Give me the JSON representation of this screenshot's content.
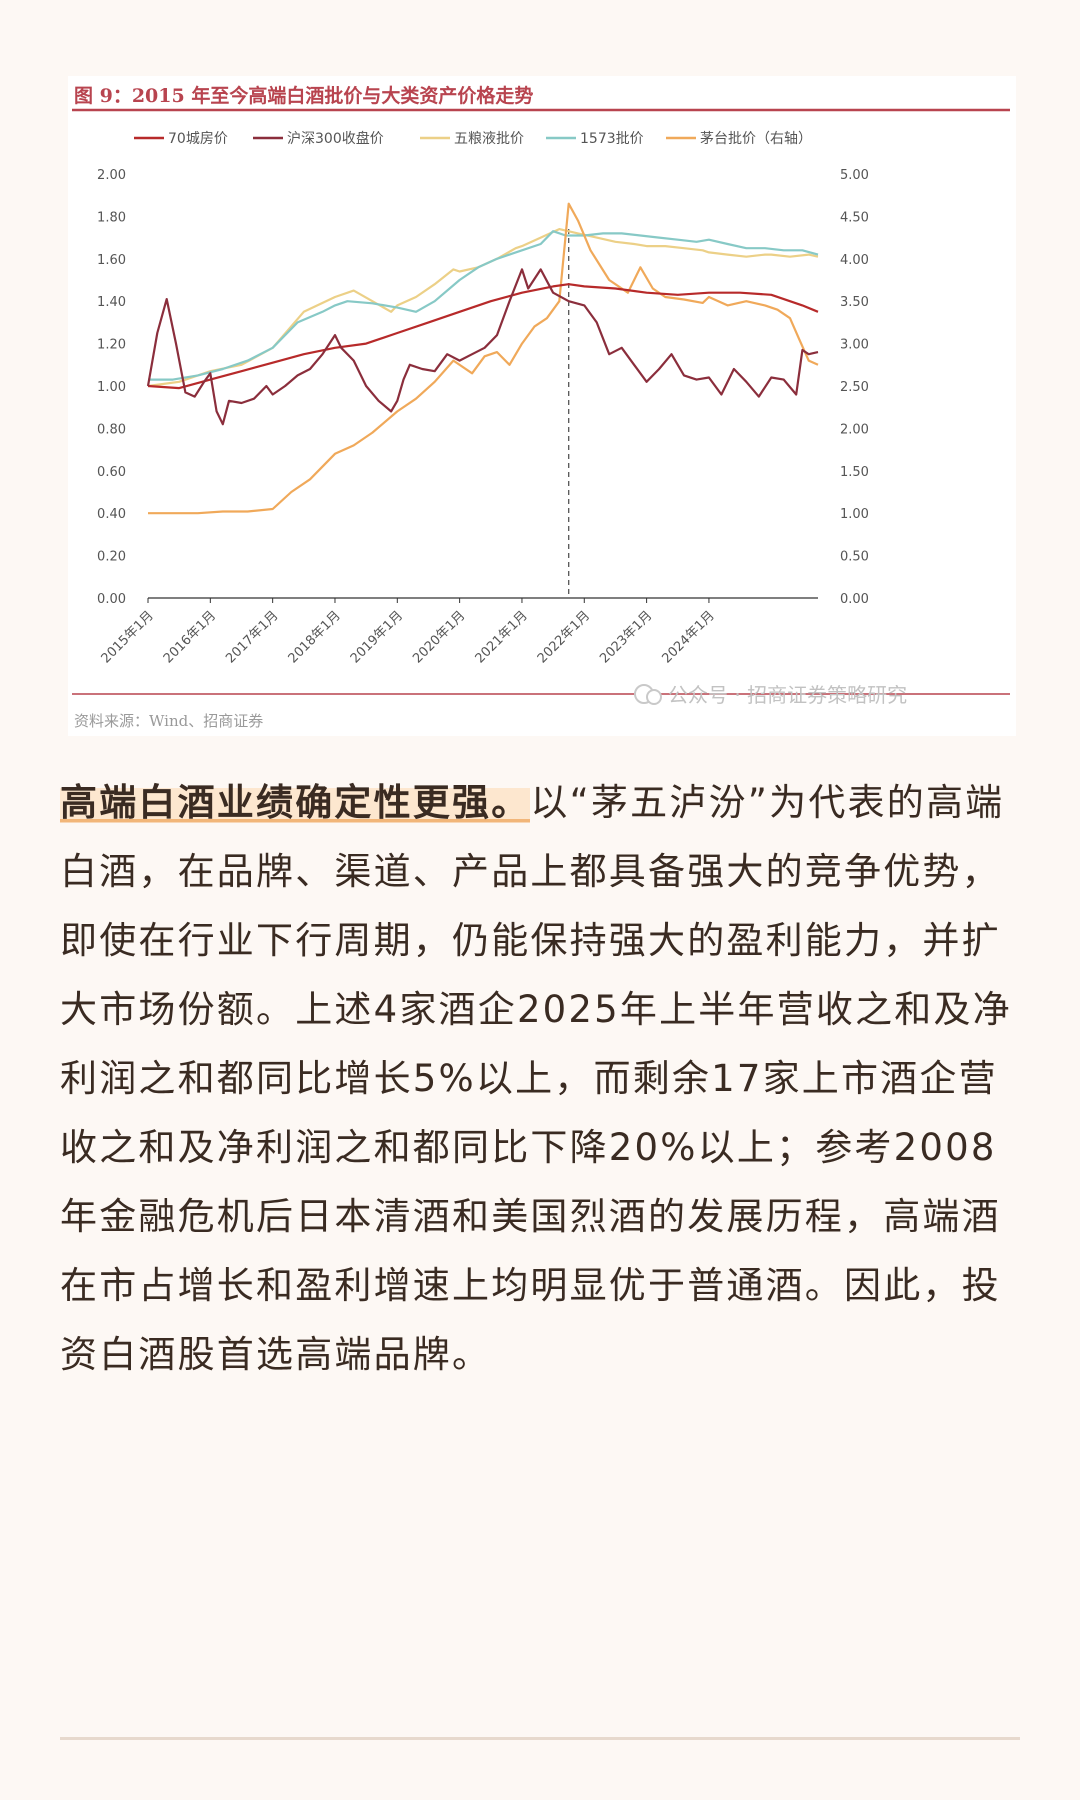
{
  "figure": {
    "title": "图 9：2015 年至今高端白酒批价与大类资产价格走势",
    "source": "资料来源：Wind、招商证券",
    "watermark": "公众号 · 招商证券策略研究"
  },
  "chart_data": {
    "type": "line",
    "title": "图 9：2015 年至今高端白酒批价与大类资产价格走势",
    "x_tick_labels": [
      "2015年1月",
      "2016年1月",
      "2017年1月",
      "2018年1月",
      "2019年1月",
      "2020年1月",
      "2021年1月",
      "2022年1月",
      "2023年1月",
      "2024年1月"
    ],
    "x_range": [
      2015.0,
      2025.75
    ],
    "y_left": {
      "range": [
        0,
        2
      ],
      "ticks": [
        "0.00",
        "0.20",
        "0.40",
        "0.60",
        "0.80",
        "1.00",
        "1.20",
        "1.40",
        "1.60",
        "1.80",
        "2.00"
      ]
    },
    "y_right": {
      "range": [
        0,
        5
      ],
      "ticks": [
        "0.00",
        "0.50",
        "1.00",
        "1.50",
        "2.00",
        "2.50",
        "3.00",
        "3.50",
        "4.00",
        "4.50",
        "5.00"
      ]
    },
    "vline_x": 2021.75,
    "grid": false,
    "legend_position": "top",
    "series": [
      {
        "name": "70城房价",
        "color": "#b72a2a",
        "axis": "left",
        "x": [
          2015.0,
          2015.5,
          2016.0,
          2016.5,
          2017.0,
          2017.5,
          2018.0,
          2018.5,
          2019.0,
          2019.5,
          2020.0,
          2020.5,
          2021.0,
          2021.5,
          2021.75,
          2022.0,
          2022.5,
          2023.0,
          2023.5,
          2024.0,
          2024.5,
          2025.0,
          2025.5,
          2025.75
        ],
        "y": [
          1.0,
          0.99,
          1.03,
          1.07,
          1.11,
          1.15,
          1.18,
          1.2,
          1.25,
          1.3,
          1.35,
          1.4,
          1.44,
          1.47,
          1.48,
          1.47,
          1.46,
          1.44,
          1.43,
          1.44,
          1.44,
          1.43,
          1.38,
          1.35
        ]
      },
      {
        "name": "沪深300收盘价",
        "color": "#8b2e3c",
        "axis": "left",
        "x": [
          2015.0,
          2015.15,
          2015.3,
          2015.45,
          2015.6,
          2015.75,
          2015.9,
          2016.0,
          2016.1,
          2016.2,
          2016.3,
          2016.5,
          2016.7,
          2016.9,
          2017.0,
          2017.2,
          2017.4,
          2017.6,
          2017.8,
          2018.0,
          2018.1,
          2018.3,
          2018.5,
          2018.7,
          2018.9,
          2019.0,
          2019.1,
          2019.2,
          2019.4,
          2019.6,
          2019.8,
          2020.0,
          2020.2,
          2020.4,
          2020.6,
          2020.8,
          2021.0,
          2021.1,
          2021.3,
          2021.5,
          2021.75,
          2022.0,
          2022.2,
          2022.4,
          2022.6,
          2022.8,
          2023.0,
          2023.2,
          2023.4,
          2023.6,
          2023.8,
          2024.0,
          2024.2,
          2024.4,
          2024.6,
          2024.8,
          2025.0,
          2025.2,
          2025.4,
          2025.5,
          2025.6,
          2025.75
        ],
        "y": [
          1.0,
          1.25,
          1.41,
          1.2,
          0.97,
          0.95,
          1.02,
          1.06,
          0.88,
          0.82,
          0.93,
          0.92,
          0.94,
          1.0,
          0.96,
          1.0,
          1.05,
          1.08,
          1.15,
          1.24,
          1.18,
          1.12,
          1.0,
          0.93,
          0.88,
          0.93,
          1.03,
          1.1,
          1.08,
          1.07,
          1.15,
          1.12,
          1.15,
          1.18,
          1.24,
          1.4,
          1.55,
          1.46,
          1.55,
          1.44,
          1.4,
          1.38,
          1.3,
          1.15,
          1.18,
          1.1,
          1.02,
          1.08,
          1.15,
          1.05,
          1.03,
          1.04,
          0.96,
          1.08,
          1.02,
          0.95,
          1.04,
          1.03,
          0.96,
          1.17,
          1.15,
          1.16
        ]
      },
      {
        "name": "五粮液批价",
        "color": "#ecd087",
        "axis": "left",
        "x": [
          2015.0,
          2015.5,
          2016.0,
          2016.5,
          2017.0,
          2017.5,
          2018.0,
          2018.3,
          2018.6,
          2018.9,
          2019.0,
          2019.3,
          2019.6,
          2019.9,
          2020.0,
          2020.3,
          2020.6,
          2020.9,
          2021.0,
          2021.3,
          2021.6,
          2021.9,
          2022.2,
          2022.5,
          2022.8,
          2023.0,
          2023.3,
          2023.6,
          2023.9,
          2024.0,
          2024.3,
          2024.6,
          2024.9,
          2025.0,
          2025.3,
          2025.6,
          2025.75
        ],
        "y": [
          1.0,
          1.02,
          1.07,
          1.1,
          1.18,
          1.35,
          1.42,
          1.45,
          1.4,
          1.35,
          1.38,
          1.42,
          1.48,
          1.55,
          1.54,
          1.56,
          1.6,
          1.65,
          1.66,
          1.7,
          1.74,
          1.72,
          1.7,
          1.68,
          1.67,
          1.66,
          1.66,
          1.65,
          1.64,
          1.63,
          1.62,
          1.61,
          1.62,
          1.62,
          1.61,
          1.62,
          1.61
        ]
      },
      {
        "name": "1573批价",
        "color": "#87c9c6",
        "axis": "left",
        "x": [
          2015.0,
          2015.4,
          2015.8,
          2016.2,
          2016.6,
          2017.0,
          2017.4,
          2017.8,
          2018.0,
          2018.2,
          2018.6,
          2019.0,
          2019.3,
          2019.6,
          2020.0,
          2020.3,
          2020.6,
          2021.0,
          2021.3,
          2021.5,
          2021.7,
          2022.0,
          2022.3,
          2022.6,
          2022.9,
          2023.2,
          2023.5,
          2023.8,
          2024.0,
          2024.3,
          2024.6,
          2024.9,
          2025.2,
          2025.5,
          2025.75
        ],
        "y": [
          1.03,
          1.03,
          1.05,
          1.08,
          1.12,
          1.18,
          1.3,
          1.35,
          1.38,
          1.4,
          1.39,
          1.37,
          1.35,
          1.4,
          1.5,
          1.56,
          1.6,
          1.64,
          1.67,
          1.73,
          1.71,
          1.71,
          1.72,
          1.72,
          1.71,
          1.7,
          1.69,
          1.68,
          1.69,
          1.67,
          1.65,
          1.65,
          1.64,
          1.64,
          1.62
        ]
      },
      {
        "name": "茅台批价（右轴）",
        "color": "#f0a95a",
        "axis": "right",
        "x": [
          2015.0,
          2015.4,
          2015.8,
          2016.2,
          2016.6,
          2017.0,
          2017.3,
          2017.6,
          2018.0,
          2018.3,
          2018.6,
          2019.0,
          2019.3,
          2019.6,
          2019.9,
          2020.2,
          2020.4,
          2020.6,
          2020.8,
          2021.0,
          2021.2,
          2021.4,
          2021.6,
          2021.75,
          2021.9,
          2022.1,
          2022.4,
          2022.7,
          2022.9,
          2023.1,
          2023.3,
          2023.6,
          2023.9,
          2024.0,
          2024.3,
          2024.6,
          2024.9,
          2025.1,
          2025.3,
          2025.45,
          2025.6,
          2025.75
        ],
        "y": [
          1.0,
          1.0,
          1.0,
          1.02,
          1.02,
          1.05,
          1.25,
          1.4,
          1.7,
          1.8,
          1.95,
          2.2,
          2.35,
          2.55,
          2.8,
          2.65,
          2.85,
          2.9,
          2.75,
          3.0,
          3.2,
          3.3,
          3.5,
          4.65,
          4.45,
          4.1,
          3.75,
          3.6,
          3.9,
          3.65,
          3.55,
          3.52,
          3.48,
          3.55,
          3.45,
          3.5,
          3.45,
          3.4,
          3.3,
          3.05,
          2.8,
          2.75
        ]
      }
    ]
  }
}
